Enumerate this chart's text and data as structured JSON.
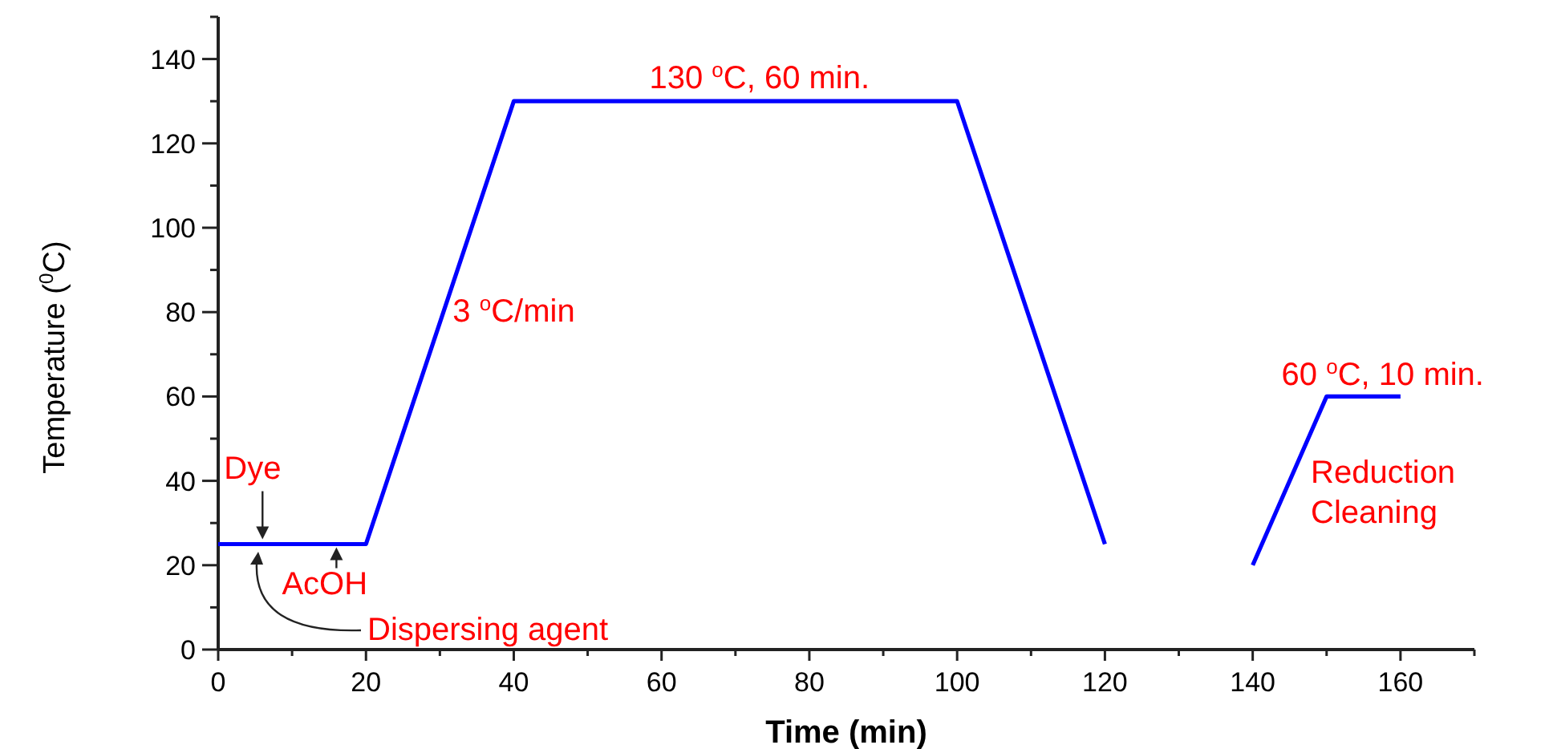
{
  "chart_data": {
    "type": "line",
    "xlabel": "Time (min)",
    "ylabel": "Temperature ($^{0}$C)",
    "x": [
      0,
      20,
      40,
      100,
      120,
      130,
      140,
      150,
      160
    ],
    "series": [
      {
        "color": "#0000ff",
        "values": [
          25,
          25,
          130,
          130,
          25,
          null,
          20,
          60,
          60
        ]
      }
    ],
    "xlim": [
      0,
      170
    ],
    "xticks": [
      0,
      {
        "value": 10,
        "label": null
      },
      20,
      {
        "value": 30,
        "label": null
      },
      40,
      {
        "value": 50,
        "label": null
      },
      60,
      {
        "value": 70,
        "label": null
      },
      80,
      {
        "value": 90,
        "label": null
      },
      100,
      {
        "value": 110,
        "label": null
      },
      120,
      {
        "value": 130,
        "label": null
      },
      140,
      {
        "value": 150,
        "label": null
      },
      160,
      {
        "value": 170,
        "label": null
      }
    ],
    "ylim": [
      0,
      150
    ],
    "yticks": [
      0,
      {
        "value": 10,
        "label": null
      },
      20,
      {
        "value": 30,
        "label": null
      },
      40,
      {
        "value": 50,
        "label": null
      },
      60,
      {
        "value": 70,
        "label": null
      },
      80,
      {
        "value": 90,
        "label": null
      },
      100,
      {
        "value": 110,
        "label": null
      },
      120,
      {
        "value": 130,
        "label": null
      },
      140,
      {
        "value": 150,
        "label": null
      }
    ],
    "grid": false,
    "marker": "none",
    "line_style": "solid",
    "annotations": [
      {
        "text": "130 $^{o}$C, 60 min.",
        "x": 70,
        "y": 130
      },
      {
        "text": "3 $^{o}$C/min",
        "x": 30,
        "y": 80
      },
      {
        "text": "60 $^{o}$C, 10 min.",
        "x": 155,
        "y": 60
      },
      "Reduction\nCleaning",
      {
        "text": "Dye",
        "x": 6,
        "y": 25
      },
      {
        "text": "AcOH",
        "x": 16,
        "y": 25
      },
      "Dispersing agent"
    ]
  }
}
